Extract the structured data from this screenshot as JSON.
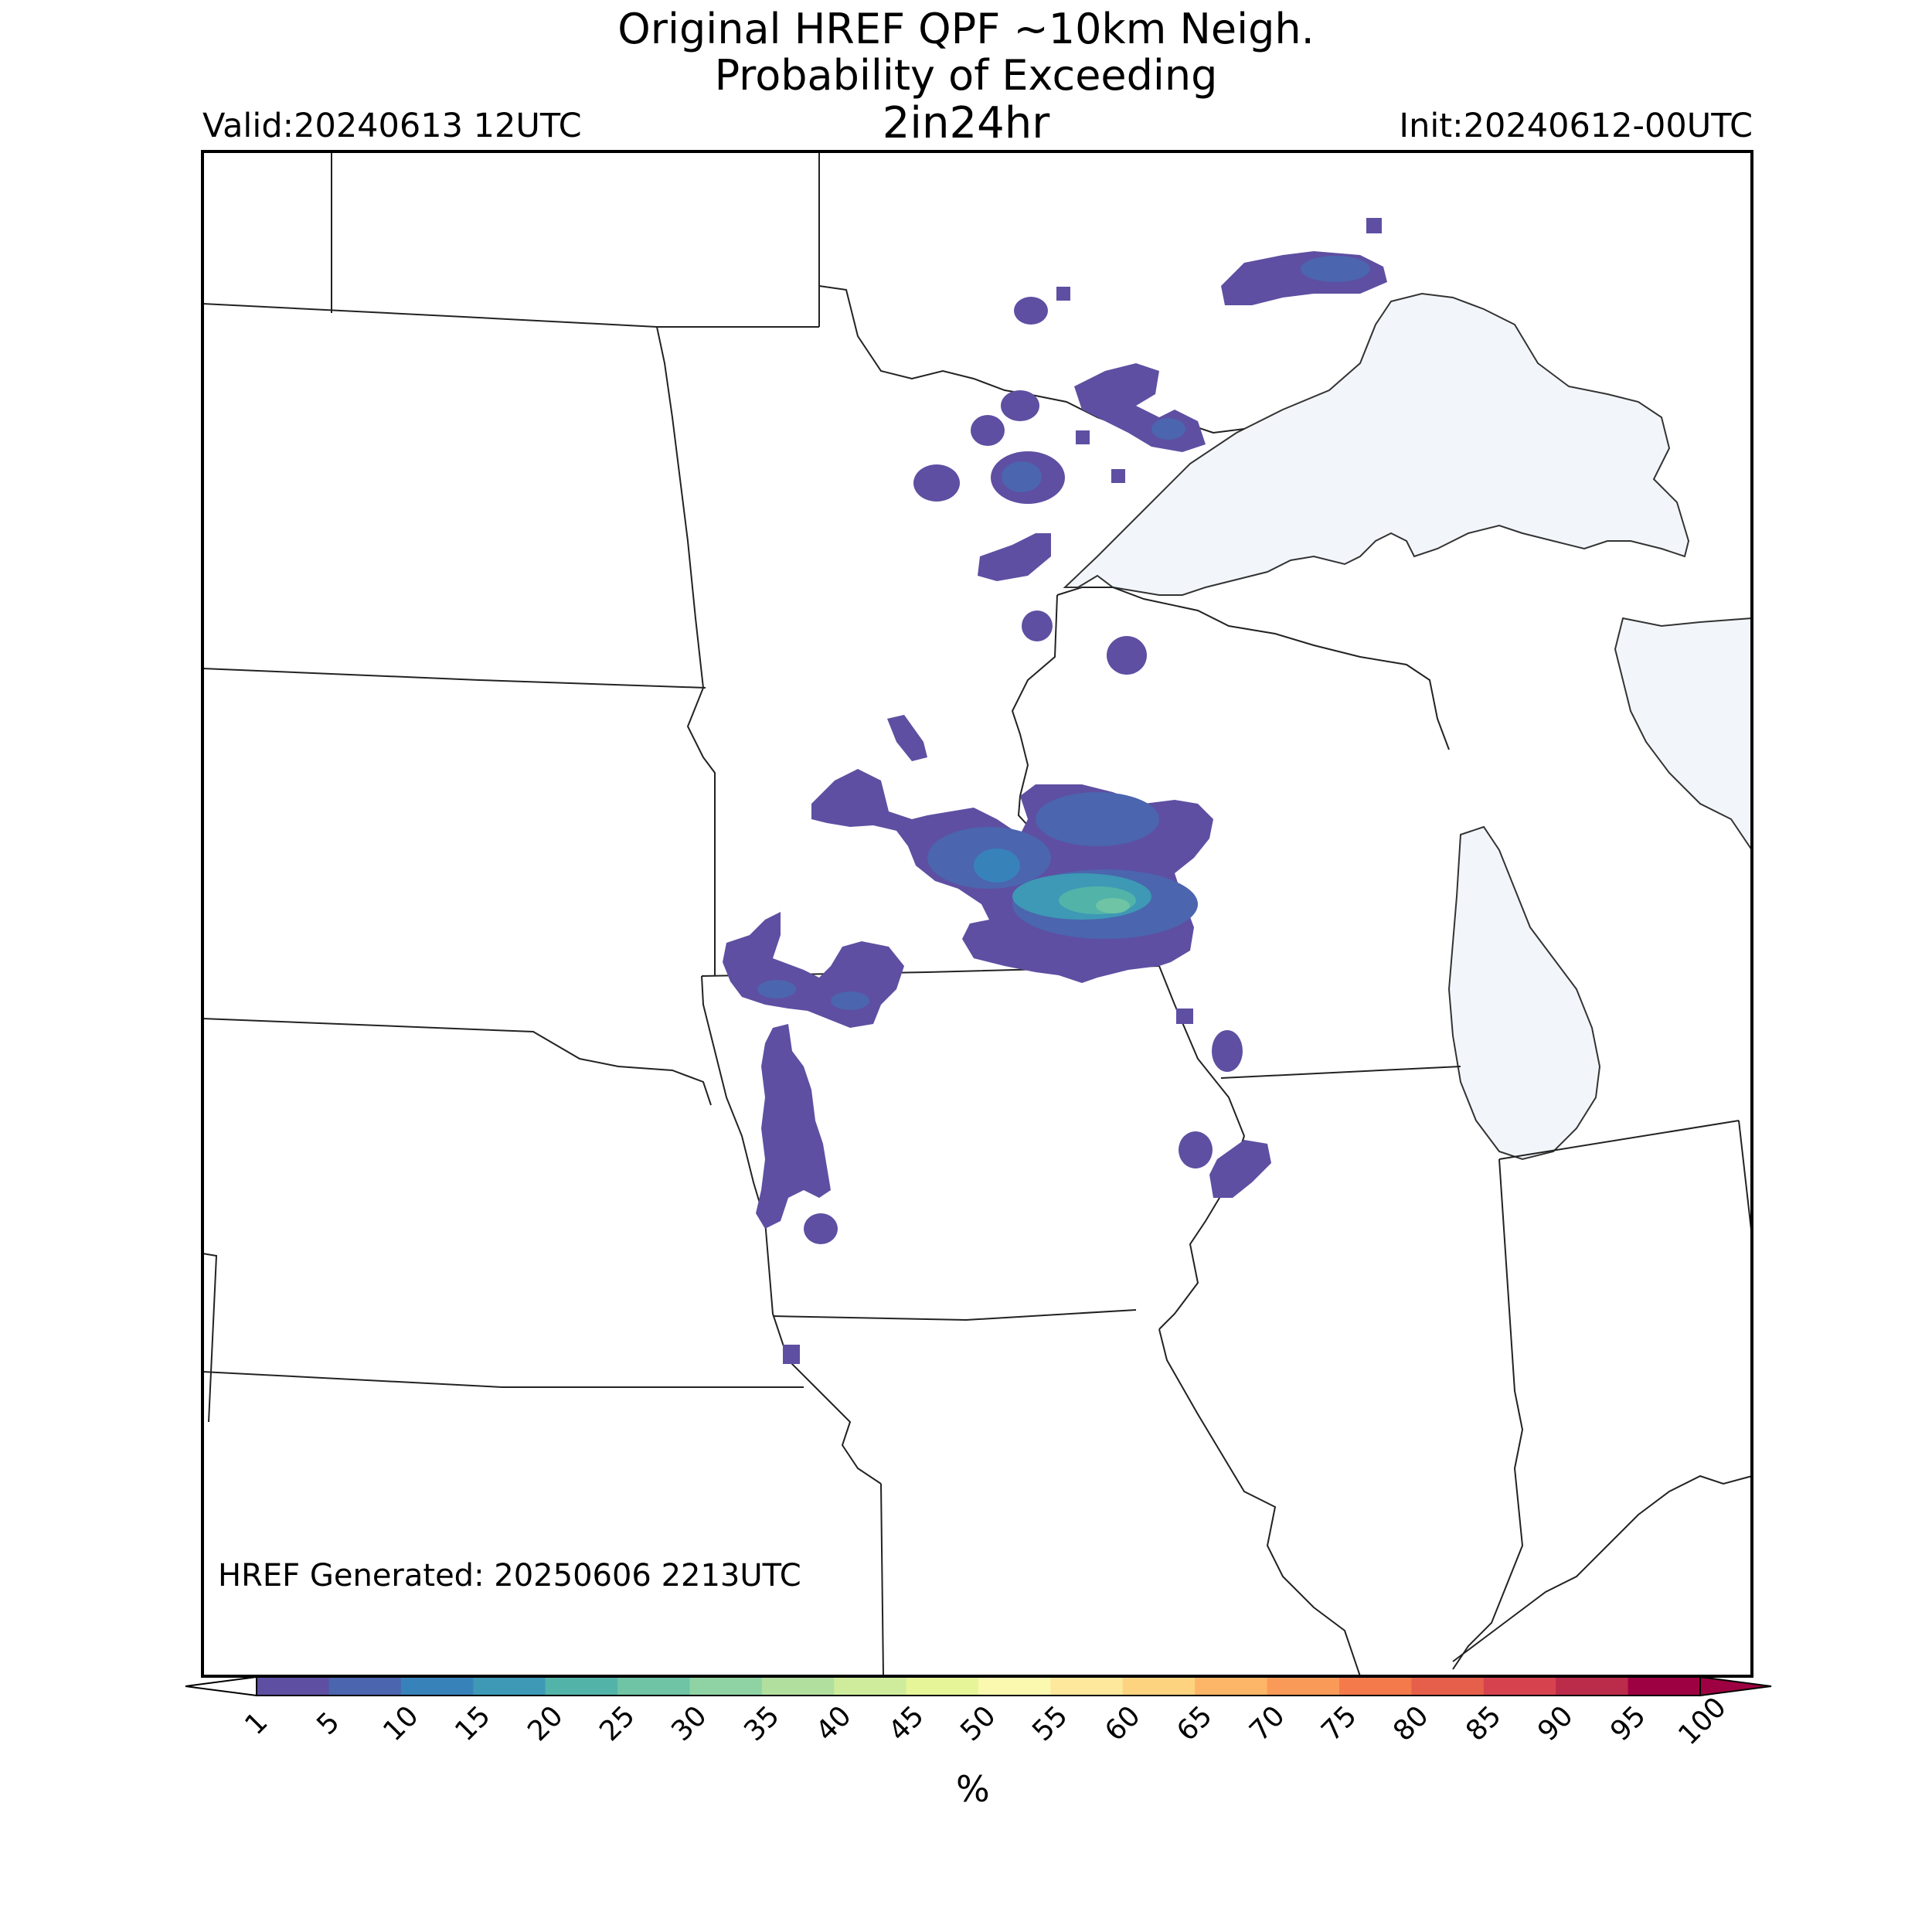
{
  "title": {
    "line1": "Original HREF QPF ~10km Neigh.",
    "line2": "Probability of Exceeding",
    "line3": "2in24hr"
  },
  "valid": "Valid:20240613 12UTC",
  "init": "Init:20240612-00UTC",
  "generated": "HREF Generated: 20250606 2213UTC",
  "colorbar": {
    "unit": "%",
    "ticks": [
      "1",
      "5",
      "10",
      "15",
      "20",
      "25",
      "30",
      "35",
      "40",
      "45",
      "50",
      "55",
      "60",
      "65",
      "70",
      "75",
      "80",
      "85",
      "90",
      "95",
      "100"
    ],
    "colors": [
      "#5e4fa2",
      "#4b65ae",
      "#3882ba",
      "#3d99b5",
      "#52b3a9",
      "#6ec4a4",
      "#8fd2a4",
      "#b1df9e",
      "#cfec9d",
      "#e6f598",
      "#fbf8b0",
      "#fee89c",
      "#fed380",
      "#fdb567",
      "#fa9a58",
      "#f47a4c",
      "#e65f4a",
      "#d6434e",
      "#bb2b4a",
      "#9e0142"
    ],
    "under_color": "#ffffff",
    "over_color": "#9e0142"
  },
  "map": {
    "water_color": "#f2f6fb",
    "border_color": "#222222"
  }
}
